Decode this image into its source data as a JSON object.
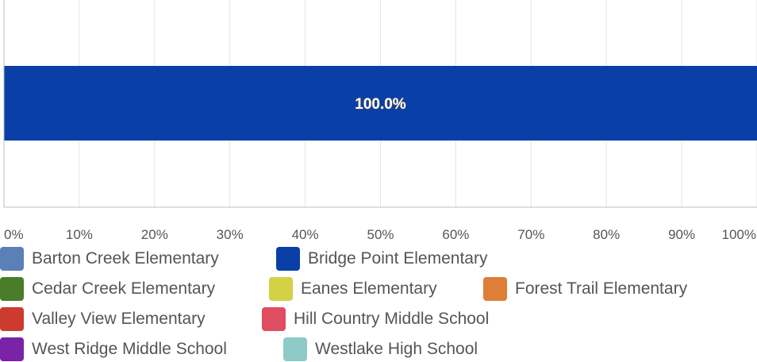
{
  "chart_data": {
    "type": "bar",
    "orientation": "horizontal",
    "stacked": true,
    "xlim": [
      0,
      100
    ],
    "x_ticks": [
      "0%",
      "10%",
      "20%",
      "30%",
      "40%",
      "50%",
      "60%",
      "70%",
      "80%",
      "90%",
      "100%"
    ],
    "grid": true,
    "legend_position": "bottom",
    "series": [
      {
        "name": "Barton Creek Elementary",
        "color": "#5b80b8",
        "value": 0
      },
      {
        "name": "Bridge Point Elementary",
        "color": "#0a3fa8",
        "value": 100.0,
        "label": "100.0%"
      },
      {
        "name": "Cedar Creek Elementary",
        "color": "#4a7d2a",
        "value": 0
      },
      {
        "name": "Eanes Elementary",
        "color": "#d4d244",
        "value": 0
      },
      {
        "name": "Forest Trail Elementary",
        "color": "#df7f37",
        "value": 0
      },
      {
        "name": "Valley View Elementary",
        "color": "#cc3a30",
        "value": 0
      },
      {
        "name": "Hill Country Middle School",
        "color": "#de4e60",
        "value": 0
      },
      {
        "name": "West Ridge Middle School",
        "color": "#7a22a8",
        "value": 0
      },
      {
        "name": "Westlake High School",
        "color": "#8ecbc8",
        "value": 0
      }
    ]
  }
}
